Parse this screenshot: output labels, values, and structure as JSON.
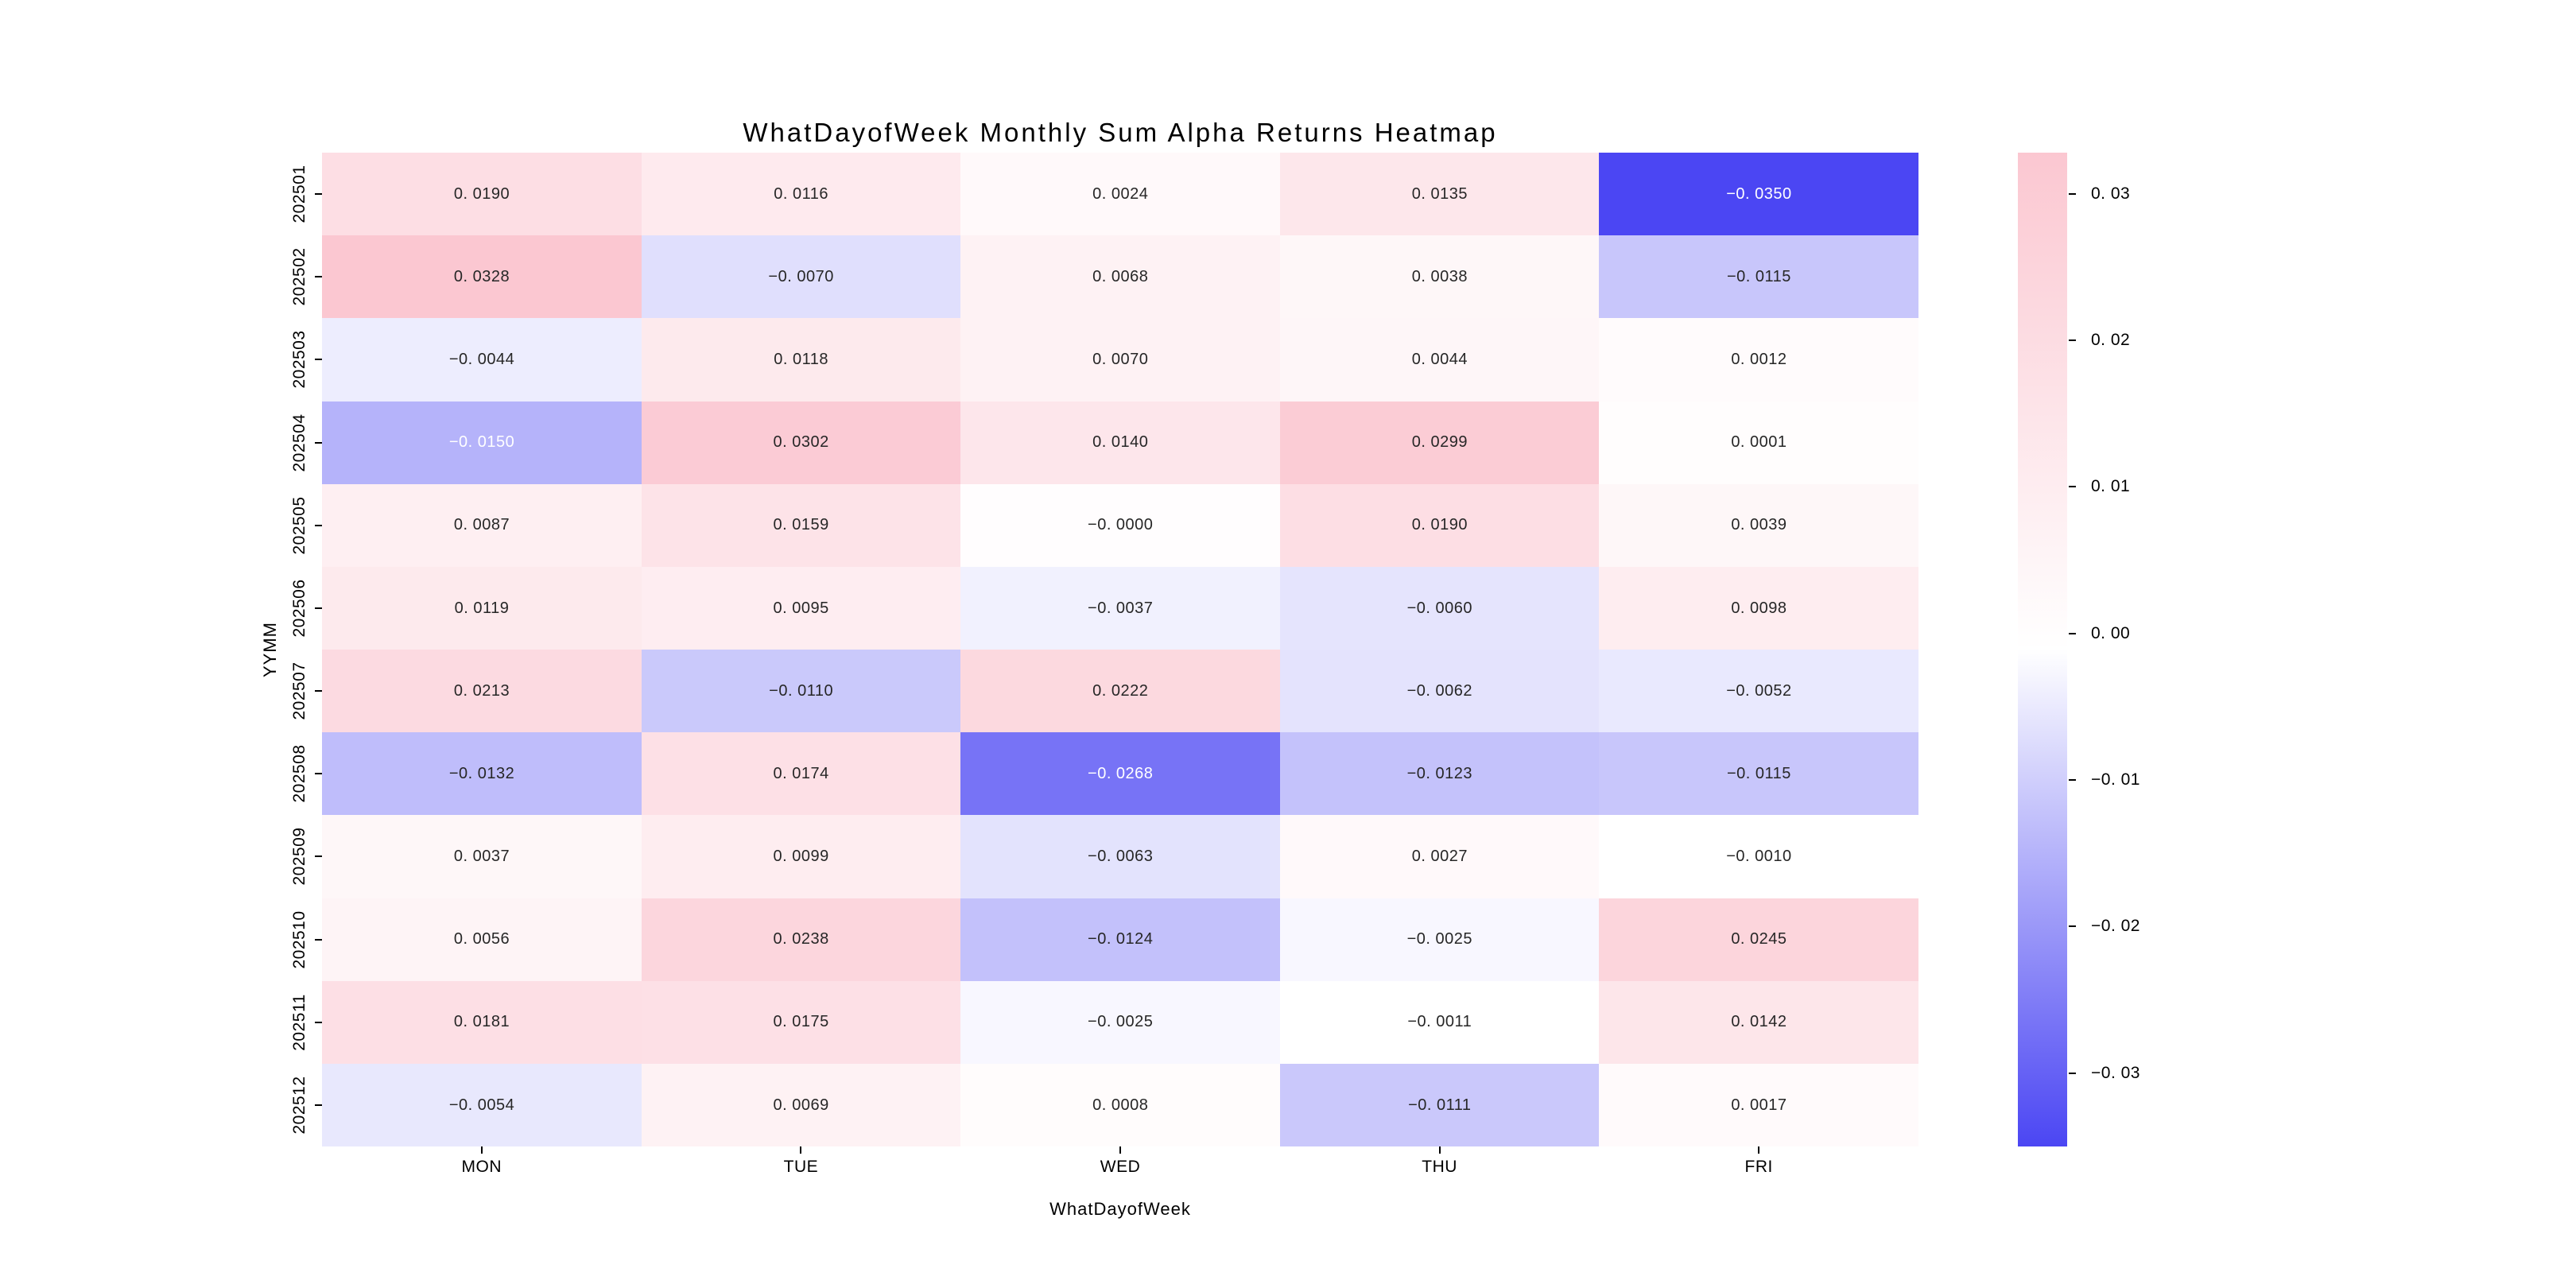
{
  "figure": {
    "background": "#ffffff"
  },
  "chart_data": {
    "type": "heatmap",
    "title": "WhatDayofWeek Monthly Sum Alpha Returns Heatmap",
    "xlabel": "WhatDayofWeek",
    "ylabel": "YYMM",
    "x_categories": [
      "MON",
      "TUE",
      "WED",
      "THU",
      "FRI"
    ],
    "y_categories": [
      "202501",
      "202502",
      "202503",
      "202504",
      "202505",
      "202506",
      "202507",
      "202508",
      "202509",
      "202510",
      "202511",
      "202512"
    ],
    "values": [
      [
        0.019,
        0.0116,
        0.0024,
        0.0135,
        -0.035
      ],
      [
        0.0328,
        -0.007,
        0.0068,
        0.0038,
        -0.0115
      ],
      [
        -0.0044,
        0.0118,
        0.007,
        0.0044,
        0.0012
      ],
      [
        -0.015,
        0.0302,
        0.014,
        0.0299,
        0.0001
      ],
      [
        0.0087,
        0.0159,
        -0.0,
        0.019,
        0.0039
      ],
      [
        0.0119,
        0.0095,
        -0.0037,
        -0.006,
        0.0098
      ],
      [
        0.0213,
        -0.011,
        0.0222,
        -0.0062,
        -0.0052
      ],
      [
        -0.0132,
        0.0174,
        -0.0268,
        -0.0123,
        -0.0115
      ],
      [
        0.0037,
        0.0099,
        -0.0063,
        0.0027,
        -0.001
      ],
      [
        0.0056,
        0.0238,
        -0.0124,
        -0.0025,
        0.0245
      ],
      [
        0.0181,
        0.0175,
        -0.0025,
        -0.0011,
        0.0142
      ],
      [
        -0.0054,
        0.0069,
        0.0008,
        -0.0111,
        0.0017
      ]
    ],
    "cell_labels": [
      [
        "0. 0190",
        "0. 0116",
        "0. 0024",
        "0. 0135",
        "−0. 0350"
      ],
      [
        "0. 0328",
        "−0. 0070",
        "0. 0068",
        "0. 0038",
        "−0. 0115"
      ],
      [
        "−0. 0044",
        "0. 0118",
        "0. 0070",
        "0. 0044",
        "0. 0012"
      ],
      [
        "−0. 0150",
        "0. 0302",
        "0. 0140",
        "0. 0299",
        "0. 0001"
      ],
      [
        "0. 0087",
        "0. 0159",
        "−0. 0000",
        "0. 0190",
        "0. 0039"
      ],
      [
        "0. 0119",
        "0. 0095",
        "−0. 0037",
        "−0. 0060",
        "0. 0098"
      ],
      [
        "0. 0213",
        "−0. 0110",
        "0. 0222",
        "−0. 0062",
        "−0. 0052"
      ],
      [
        "−0. 0132",
        "0. 0174",
        "−0. 0268",
        "−0. 0123",
        "−0. 0115"
      ],
      [
        "0. 0037",
        "0. 0099",
        "−0. 0063",
        "0. 0027",
        "−0. 0010"
      ],
      [
        "0. 0056",
        "0. 0238",
        "−0. 0124",
        "−0. 0025",
        "0. 0245"
      ],
      [
        "0. 0181",
        "0. 0175",
        "−0. 0025",
        "−0. 0011",
        "0. 0142"
      ],
      [
        "−0. 0054",
        "0. 0069",
        "0. 0008",
        "−0. 0111",
        "0. 0017"
      ]
    ],
    "colorbar": {
      "vmin": -0.035,
      "vmax": 0.0328,
      "tick_values": [
        0.03,
        0.02,
        0.01,
        0.0,
        -0.01,
        -0.02,
        -0.03
      ],
      "tick_labels": [
        "0. 03",
        "0. 02",
        "0. 01",
        "0. 00",
        "−0. 01",
        "−0. 02",
        "−0. 03"
      ],
      "position": "right"
    },
    "colors": {
      "negative_min": "#4b46f3",
      "center": "#ffffff",
      "positive_max": "#fbc7d1",
      "annotation_dark": "#262626",
      "annotation_light": "#ffffff"
    },
    "grid": false
  }
}
